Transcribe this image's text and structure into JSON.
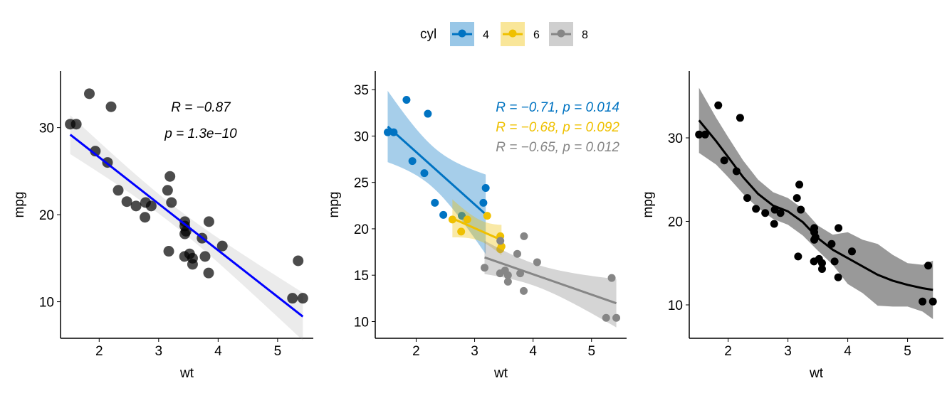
{
  "chart_data": [
    {
      "type": "scatter",
      "title": "",
      "xlabel": "wt",
      "ylabel": "mpg",
      "xticks": [
        2,
        3,
        4,
        5
      ],
      "yticks": [
        10,
        20,
        30
      ],
      "xlim": [
        1.35,
        5.6
      ],
      "ylim": [
        5.8,
        36.5
      ],
      "fit": "lm",
      "line_color": "#0000FF",
      "point_color": "#000000",
      "annotations": [
        "R = −0.87",
        "p = 1.3e−10"
      ]
    },
    {
      "type": "scatter",
      "title": "",
      "xlabel": "wt",
      "ylabel": "mpg",
      "xticks": [
        2,
        3,
        4,
        5
      ],
      "yticks": [
        10,
        15,
        20,
        25,
        30,
        35
      ],
      "xlim": [
        1.3,
        5.6
      ],
      "ylim": [
        8.2,
        37
      ],
      "fit": "lm-by-group",
      "annotations": [
        {
          "text": "R = −0.71, p = 0.014",
          "group": "4"
        },
        {
          "text": "R = −0.68, p = 0.092",
          "group": "6"
        },
        {
          "text": "R = −0.65, p = 0.012",
          "group": "8"
        }
      ]
    },
    {
      "type": "scatter",
      "title": "",
      "xlabel": "wt",
      "ylabel": "mpg",
      "xticks": [
        2,
        3,
        4,
        5
      ],
      "yticks": [
        10,
        20,
        30
      ],
      "xlim": [
        1.35,
        5.6
      ],
      "ylim": [
        6,
        38
      ],
      "fit": "loess",
      "line_color": "#000000",
      "point_color": "#000000",
      "loess": [
        [
          1.513,
          32.1,
          28.2,
          36.0
        ],
        [
          1.8,
          29.6,
          26.8,
          32.4
        ],
        [
          2.0,
          27.7,
          25.3,
          30.1
        ],
        [
          2.25,
          25.3,
          23.3,
          27.3
        ],
        [
          2.5,
          23.3,
          21.6,
          25.0
        ],
        [
          2.75,
          21.9,
          20.3,
          23.5
        ],
        [
          3.0,
          21.2,
          19.6,
          22.8
        ],
        [
          3.25,
          19.9,
          18.3,
          21.5
        ],
        [
          3.5,
          18.0,
          16.5,
          19.5
        ],
        [
          3.75,
          16.6,
          14.8,
          18.4
        ],
        [
          4.0,
          15.6,
          12.5,
          18.7
        ],
        [
          4.25,
          14.6,
          11.4,
          17.8
        ],
        [
          4.5,
          13.6,
          9.9,
          17.3
        ],
        [
          4.75,
          12.9,
          9.8,
          16.0
        ],
        [
          5.0,
          12.4,
          9.8,
          15.0
        ],
        [
          5.25,
          12.0,
          9.2,
          14.8
        ],
        [
          5.424,
          11.8,
          8.3,
          15.3
        ]
      ]
    }
  ],
  "legend": {
    "title": "cyl",
    "items": [
      {
        "label": "4",
        "color": "#0073C2"
      },
      {
        "label": "6",
        "color": "#EFC000"
      },
      {
        "label": "8",
        "color": "#868686"
      }
    ]
  },
  "points": {
    "wt": [
      2.62,
      2.875,
      2.32,
      3.215,
      3.44,
      3.46,
      3.57,
      3.19,
      3.15,
      3.44,
      3.44,
      4.07,
      3.73,
      3.78,
      5.25,
      5.424,
      5.345,
      2.2,
      1.615,
      1.835,
      2.465,
      3.52,
      3.435,
      3.84,
      3.845,
      1.935,
      2.14,
      1.513,
      3.17,
      2.77,
      3.57,
      2.78
    ],
    "mpg": [
      21,
      21,
      22.8,
      21.4,
      18.7,
      18.1,
      14.3,
      24.4,
      22.8,
      19.2,
      17.8,
      16.4,
      17.3,
      15.2,
      10.4,
      10.4,
      14.7,
      32.4,
      30.4,
      33.9,
      21.5,
      15.5,
      15.2,
      13.3,
      19.2,
      27.3,
      26,
      30.4,
      15.8,
      19.7,
      15,
      21.4
    ],
    "cyl": [
      "6",
      "6",
      "4",
      "6",
      "8",
      "6",
      "8",
      "4",
      "4",
      "6",
      "6",
      "8",
      "8",
      "8",
      "8",
      "8",
      "8",
      "4",
      "4",
      "4",
      "4",
      "8",
      "8",
      "8",
      "8",
      "4",
      "4",
      "4",
      "8",
      "6",
      "8",
      "4"
    ]
  }
}
